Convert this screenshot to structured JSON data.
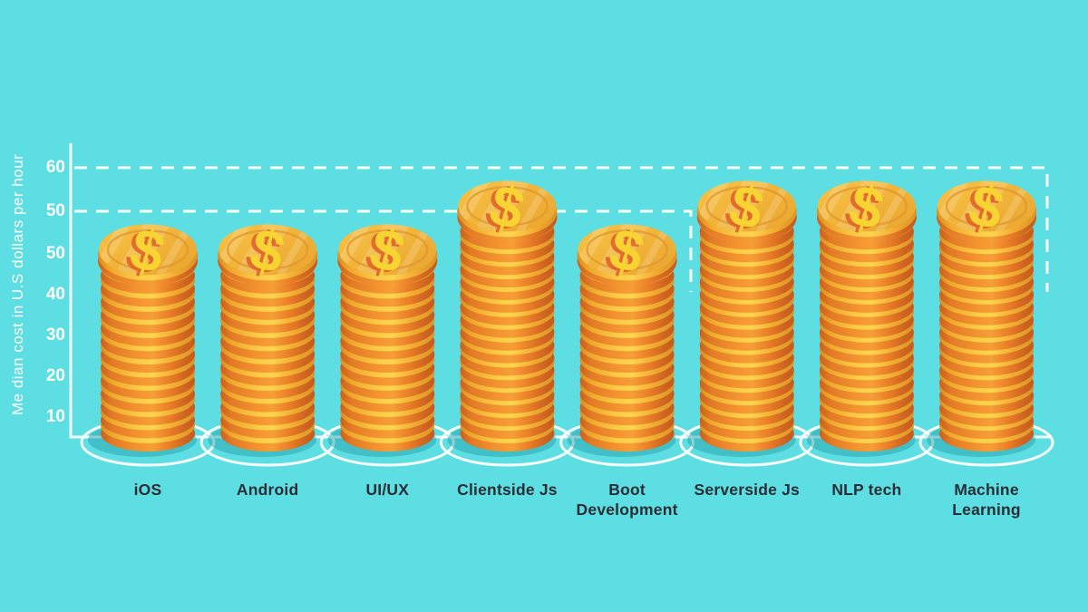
{
  "colors": {
    "background": "#5DDEE3",
    "axis_line": "#FFFFFF",
    "tick_text": "#FFFFFF",
    "category_text": "#2A2E35",
    "coin_edge_dark": "#E0701F",
    "coin_edge_mid": "#F79E36",
    "coin_ridge_light": "#FFD44F",
    "coin_face": "#F0B136",
    "dollar_sign": "#F8D433",
    "dollar_shadow": "#E06429",
    "base_shadow_teal": "#27A2AE",
    "base_ring": "#FFFFFF"
  },
  "y_axis": {
    "title": "Me dian cost in U.S dollars per hour",
    "dashed_tick_labels": [
      "60",
      "50"
    ],
    "tick_labels": [
      "50",
      "40",
      "30",
      "20",
      "10"
    ]
  },
  "chart_data": {
    "type": "bar",
    "title": "",
    "xlabel": "",
    "ylabel": "Me dian cost in U.S dollars per hour",
    "unit": "US dollars per hour",
    "categories": [
      "iOS",
      "Android",
      "UI/UX",
      "Clientside Js",
      "Boot Development",
      "Serverside Js",
      "NLP tech",
      "Machine Learning"
    ],
    "display_lines": [
      [
        "iOS"
      ],
      [
        "Android"
      ],
      [
        "UI/UX"
      ],
      [
        "Clientside Js"
      ],
      [
        "Boot",
        "Development"
      ],
      [
        "Serverside Js"
      ],
      [
        "NLP tech"
      ],
      [
        "Machine",
        "Learning"
      ]
    ],
    "values": [
      47,
      47,
      47,
      57,
      47,
      57,
      57,
      57
    ],
    "values_note": "estimated from coin-stack heights against dashed guide lines at 50 and 60",
    "ylim": [
      0,
      60
    ],
    "axis_tick_labels_bottom_to_top": [
      "10",
      "20",
      "30",
      "40",
      "50"
    ],
    "reference_lines": [
      {
        "value": 60,
        "style": "dashed",
        "extends_to": "right edge with downward dashed corner"
      },
      {
        "value": 50,
        "style": "dashed",
        "extends_to": "fifth stack with downward dashed corner"
      }
    ],
    "legend": "none",
    "grid": false,
    "bar_style": "isometric stacks of gold dollar coins on white-ringed bases"
  }
}
